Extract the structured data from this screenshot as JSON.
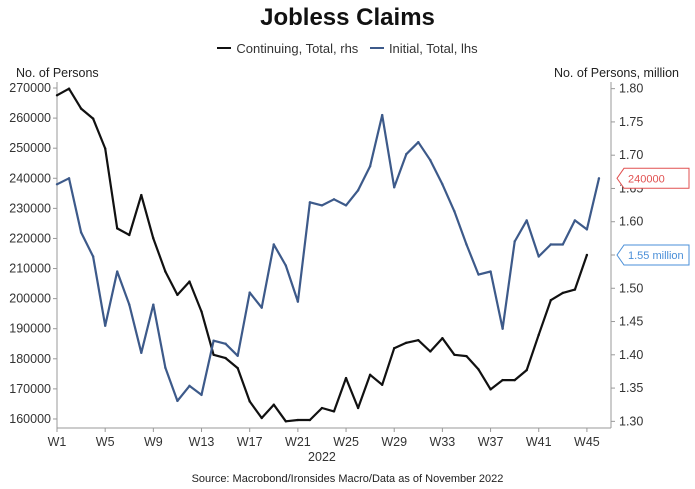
{
  "chart_data": {
    "type": "line",
    "title": "Jobless Claims",
    "left_axis_title": "No. of Persons",
    "right_axis_title": "No. of Persons, million",
    "x_axis_caption": "2022",
    "source": "Source: Macrobond/Ironsides Macro/Data as of November 2022",
    "x_tick_labels": [
      "W1",
      "W5",
      "W9",
      "W13",
      "W17",
      "W21",
      "W25",
      "W29",
      "W33",
      "W37",
      "W41",
      "W45"
    ],
    "x_tick_weeks": [
      1,
      5,
      9,
      13,
      17,
      21,
      25,
      29,
      33,
      37,
      41,
      45
    ],
    "xlim": [
      1,
      47
    ],
    "left_ylim": [
      157000,
      272000
    ],
    "left_ticks": [
      160000,
      170000,
      180000,
      190000,
      200000,
      210000,
      220000,
      230000,
      240000,
      250000,
      260000,
      270000
    ],
    "left_tick_labels": [
      "160000",
      "170000",
      "180000",
      "190000",
      "200000",
      "210000",
      "220000",
      "230000",
      "240000",
      "250000",
      "260000",
      "270000"
    ],
    "right_ylim": [
      1.29,
      1.81
    ],
    "right_ticks": [
      1.3,
      1.35,
      1.4,
      1.45,
      1.5,
      1.55,
      1.6,
      1.65,
      1.7,
      1.75,
      1.8
    ],
    "right_tick_labels": [
      "1.30",
      "1.35",
      "1.40",
      "1.45",
      "1.50",
      "1.55",
      "1.60",
      "1.65",
      "1.70",
      "1.75",
      "1.80"
    ],
    "series": [
      {
        "name": "Continuing, Total, rhs",
        "axis": "right",
        "color": "#111111",
        "x": [
          1,
          2,
          3,
          4,
          5,
          6,
          7,
          8,
          9,
          10,
          11,
          12,
          13,
          14,
          15,
          16,
          17,
          18,
          19,
          20,
          21,
          22,
          23,
          24,
          25,
          26,
          27,
          28,
          29,
          30,
          31,
          32,
          33,
          34,
          35,
          36,
          37,
          38,
          39,
          40,
          41,
          42,
          43,
          44,
          45
        ],
        "values": [
          1.79,
          1.8,
          1.77,
          1.755,
          1.71,
          1.59,
          1.58,
          1.64,
          1.575,
          1.525,
          1.49,
          1.51,
          1.465,
          1.4,
          1.395,
          1.38,
          1.33,
          1.305,
          1.325,
          1.3,
          1.302,
          1.302,
          1.32,
          1.315,
          1.365,
          1.32,
          1.37,
          1.355,
          1.41,
          1.418,
          1.422,
          1.405,
          1.425,
          1.4,
          1.398,
          1.378,
          1.348,
          1.362,
          1.362,
          1.377,
          1.43,
          1.482,
          1.493,
          1.498,
          1.55
        ],
        "end_label": "1.55 million"
      },
      {
        "name": "Initial, Total, lhs",
        "axis": "left",
        "color": "#3d5a8a",
        "x": [
          1,
          2,
          3,
          4,
          5,
          6,
          7,
          8,
          9,
          10,
          11,
          12,
          13,
          14,
          15,
          16,
          17,
          18,
          19,
          20,
          21,
          22,
          23,
          24,
          25,
          26,
          27,
          28,
          29,
          30,
          31,
          32,
          33,
          34,
          35,
          36,
          37,
          38,
          39,
          40,
          41,
          42,
          43,
          44,
          45,
          46
        ],
        "values": [
          238000,
          240000,
          222000,
          214000,
          191000,
          209000,
          198000,
          182000,
          198000,
          177000,
          166000,
          171000,
          168000,
          186000,
          185000,
          181000,
          202000,
          197000,
          218000,
          211000,
          199000,
          232000,
          231000,
          233000,
          231000,
          236000,
          244000,
          261000,
          237000,
          248000,
          252000,
          246000,
          238000,
          229000,
          218000,
          208000,
          209000,
          190000,
          219000,
          226000,
          214000,
          218000,
          218000,
          226000,
          223000,
          240000
        ],
        "end_label": "240000"
      }
    ],
    "end_label_colors": {
      "initial": "#e15050",
      "continuing": "#4a8fd8"
    },
    "grid": false,
    "legend_position": "top"
  }
}
